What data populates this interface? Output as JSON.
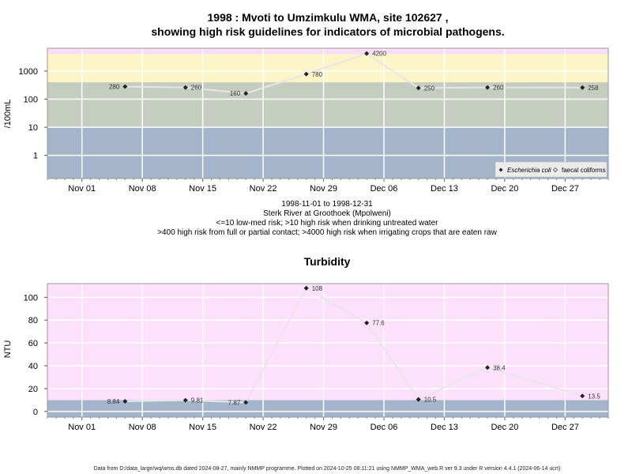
{
  "footer": "Data from D:/data_large/wq/wms.db dated 2024-08-27, mainly NMMP programme. Plotted on 2024-10-25 08:11:21 using NMMP_WMA_web.R ver 9.3 under R version 4.4.1 (2024-06-14 ucrt)",
  "chart_data": [
    {
      "type": "scatter",
      "title": "1998 : Mvoti to Umzimkulu WMA, site 102627 ,",
      "subtitle": "showing high risk guidelines for indicators of microbial pathogens.",
      "ylabel": "/100mL",
      "xlabel": "",
      "y_scale": "log",
      "ylim": [
        0.15,
        6500
      ],
      "xlim": [
        "1998-10-28",
        "1999-01-01"
      ],
      "y_ticks": [
        1,
        10,
        100,
        1000
      ],
      "x_ticks": [
        "Nov 01",
        "Nov 08",
        "Nov 15",
        "Nov 22",
        "Nov 29",
        "Dec 06",
        "Dec 13",
        "Dec 20",
        "Dec 27"
      ],
      "x_tick_dates": [
        "1998-11-01",
        "1998-11-08",
        "1998-11-15",
        "1998-11-22",
        "1998-11-29",
        "1998-12-06",
        "1998-12-13",
        "1998-12-20",
        "1998-12-27"
      ],
      "grid": true,
      "bands": [
        {
          "from": 0.15,
          "to": 10,
          "color": "#a3b4cb"
        },
        {
          "from": 10,
          "to": 400,
          "color": "#c5cdc0"
        },
        {
          "from": 400,
          "to": 4000,
          "color": "#fcf5c8"
        },
        {
          "from": 4000,
          "to": 6500,
          "color": "#f9ddf5"
        }
      ],
      "legend_position": "bottom-right",
      "series": [
        {
          "name": "Escherichia coli",
          "marker": "filled-diamond",
          "x": [
            "1998-11-06",
            "1998-11-13",
            "1998-11-20",
            "1998-11-27",
            "1998-12-04",
            "1998-12-10",
            "1998-12-18",
            "1998-12-29"
          ],
          "y": [
            280,
            260,
            160,
            780,
            4200,
            250,
            260,
            258
          ],
          "labels": [
            "280",
            "260",
            "160",
            "780",
            "4200",
            "250",
            "260",
            "258"
          ]
        },
        {
          "name": "faecal coliforms",
          "marker": "open-diamond",
          "x": [],
          "y": []
        }
      ],
      "notes": [
        "1998-11-01 to 1998-12-31",
        "Sterk River at Groothoek (Mpolweni)",
        "<=10 low-med risk; >10 high risk when drinking untreated water",
        ">400 high risk from full or partial contact; >4000 high risk when irrigating crops that are eaten raw"
      ]
    },
    {
      "type": "scatter",
      "title": "Turbidity",
      "ylabel": "NTU",
      "xlabel": "",
      "ylim": [
        -5,
        112
      ],
      "xlim": [
        "1998-10-28",
        "1999-01-01"
      ],
      "y_ticks": [
        0,
        20,
        40,
        60,
        80,
        100
      ],
      "x_ticks": [
        "Nov 01",
        "Nov 08",
        "Nov 15",
        "Nov 22",
        "Nov 29",
        "Dec 06",
        "Dec 13",
        "Dec 20",
        "Dec 27"
      ],
      "x_tick_dates": [
        "1998-11-01",
        "1998-11-08",
        "1998-11-15",
        "1998-11-22",
        "1998-11-29",
        "1998-12-06",
        "1998-12-13",
        "1998-12-20",
        "1998-12-27"
      ],
      "grid": true,
      "bands": [
        {
          "from": -5,
          "to": 10,
          "color": "#a3b4cb"
        },
        {
          "from": 10,
          "to": 112,
          "color": "#fde0fb"
        }
      ],
      "series": [
        {
          "marker": "filled-diamond",
          "x": [
            "1998-11-06",
            "1998-11-13",
            "1998-11-20",
            "1998-11-27",
            "1998-12-04",
            "1998-12-10",
            "1998-12-18",
            "1998-12-29"
          ],
          "y": [
            8.84,
            9.81,
            7.87,
            108,
            77.6,
            10.5,
            38.4,
            13.5
          ],
          "labels": [
            "8.84",
            "9.81",
            "7.87",
            "108",
            "77.6",
            "10.5",
            "38.4",
            "13.5"
          ]
        }
      ]
    }
  ]
}
